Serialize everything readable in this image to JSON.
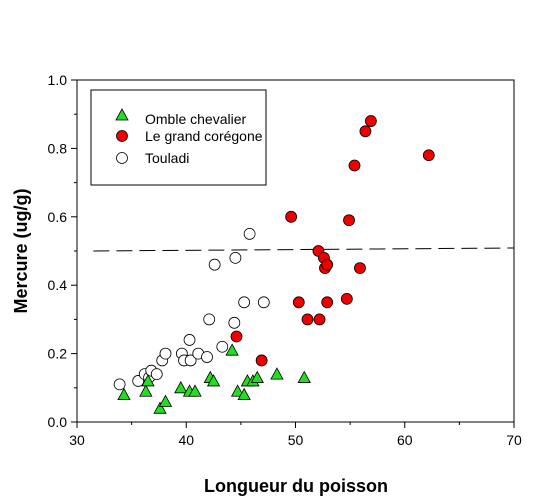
{
  "chart_data": {
    "type": "scatter",
    "xlabel": "Longueur du poisson",
    "ylabel": "Mercure (ug/g)",
    "xlim": [
      30,
      70
    ],
    "ylim": [
      0,
      1.0
    ],
    "x_ticks": [
      30,
      40,
      50,
      60,
      70
    ],
    "y_ticks": [
      0.0,
      0.2,
      0.4,
      0.6,
      0.8,
      1.0
    ],
    "x_tick_labels": [
      "30",
      "40",
      "50",
      "60",
      "70"
    ],
    "y_tick_labels": [
      "0.0",
      "0.2",
      "0.4",
      "0.6",
      "0.8",
      "1.0"
    ],
    "grid": false,
    "legend_position": "top-left",
    "reference_line": {
      "y": 0.5,
      "x_start": 31.5,
      "x_end": 70,
      "style": "dashed"
    },
    "series": [
      {
        "name": "Omble chevalier",
        "marker": "triangle",
        "color": "#22dd22",
        "points": [
          [
            34.3,
            0.08
          ],
          [
            36.3,
            0.09
          ],
          [
            36.5,
            0.12
          ],
          [
            37.6,
            0.04
          ],
          [
            38.1,
            0.06
          ],
          [
            39.5,
            0.1
          ],
          [
            40.3,
            0.09
          ],
          [
            40.8,
            0.09
          ],
          [
            42.2,
            0.13
          ],
          [
            42.5,
            0.12
          ],
          [
            44.2,
            0.21
          ],
          [
            44.7,
            0.09
          ],
          [
            45.3,
            0.08
          ],
          [
            45.6,
            0.12
          ],
          [
            46.1,
            0.12
          ],
          [
            46.5,
            0.13
          ],
          [
            48.3,
            0.14
          ],
          [
            50.8,
            0.13
          ]
        ]
      },
      {
        "name": "Le grand corégone",
        "marker": "circle",
        "color": "#ee0000",
        "points": [
          [
            44.6,
            0.25
          ],
          [
            46.9,
            0.18
          ],
          [
            49.6,
            0.6
          ],
          [
            50.3,
            0.35
          ],
          [
            51.1,
            0.3
          ],
          [
            52.1,
            0.5
          ],
          [
            52.2,
            0.3
          ],
          [
            52.6,
            0.48
          ],
          [
            52.7,
            0.45
          ],
          [
            52.9,
            0.46
          ],
          [
            52.9,
            0.35
          ],
          [
            54.7,
            0.36
          ],
          [
            54.9,
            0.59
          ],
          [
            55.4,
            0.75
          ],
          [
            55.9,
            0.45
          ],
          [
            56.4,
            0.85
          ],
          [
            56.9,
            0.88
          ],
          [
            62.2,
            0.78
          ]
        ]
      },
      {
        "name": "Touladi",
        "marker": "circle-open",
        "color": "#000000",
        "points": [
          [
            33.9,
            0.11
          ],
          [
            35.6,
            0.12
          ],
          [
            36.2,
            0.14
          ],
          [
            36.6,
            0.13
          ],
          [
            36.8,
            0.15
          ],
          [
            37.3,
            0.14
          ],
          [
            37.8,
            0.18
          ],
          [
            38.1,
            0.2
          ],
          [
            39.6,
            0.2
          ],
          [
            39.8,
            0.18
          ],
          [
            40.3,
            0.24
          ],
          [
            40.4,
            0.18
          ],
          [
            41.1,
            0.2
          ],
          [
            41.9,
            0.19
          ],
          [
            42.1,
            0.3
          ],
          [
            42.6,
            0.46
          ],
          [
            43.3,
            0.22
          ],
          [
            44.4,
            0.29
          ],
          [
            44.5,
            0.48
          ],
          [
            45.3,
            0.35
          ],
          [
            45.8,
            0.55
          ],
          [
            47.1,
            0.35
          ]
        ]
      }
    ]
  }
}
